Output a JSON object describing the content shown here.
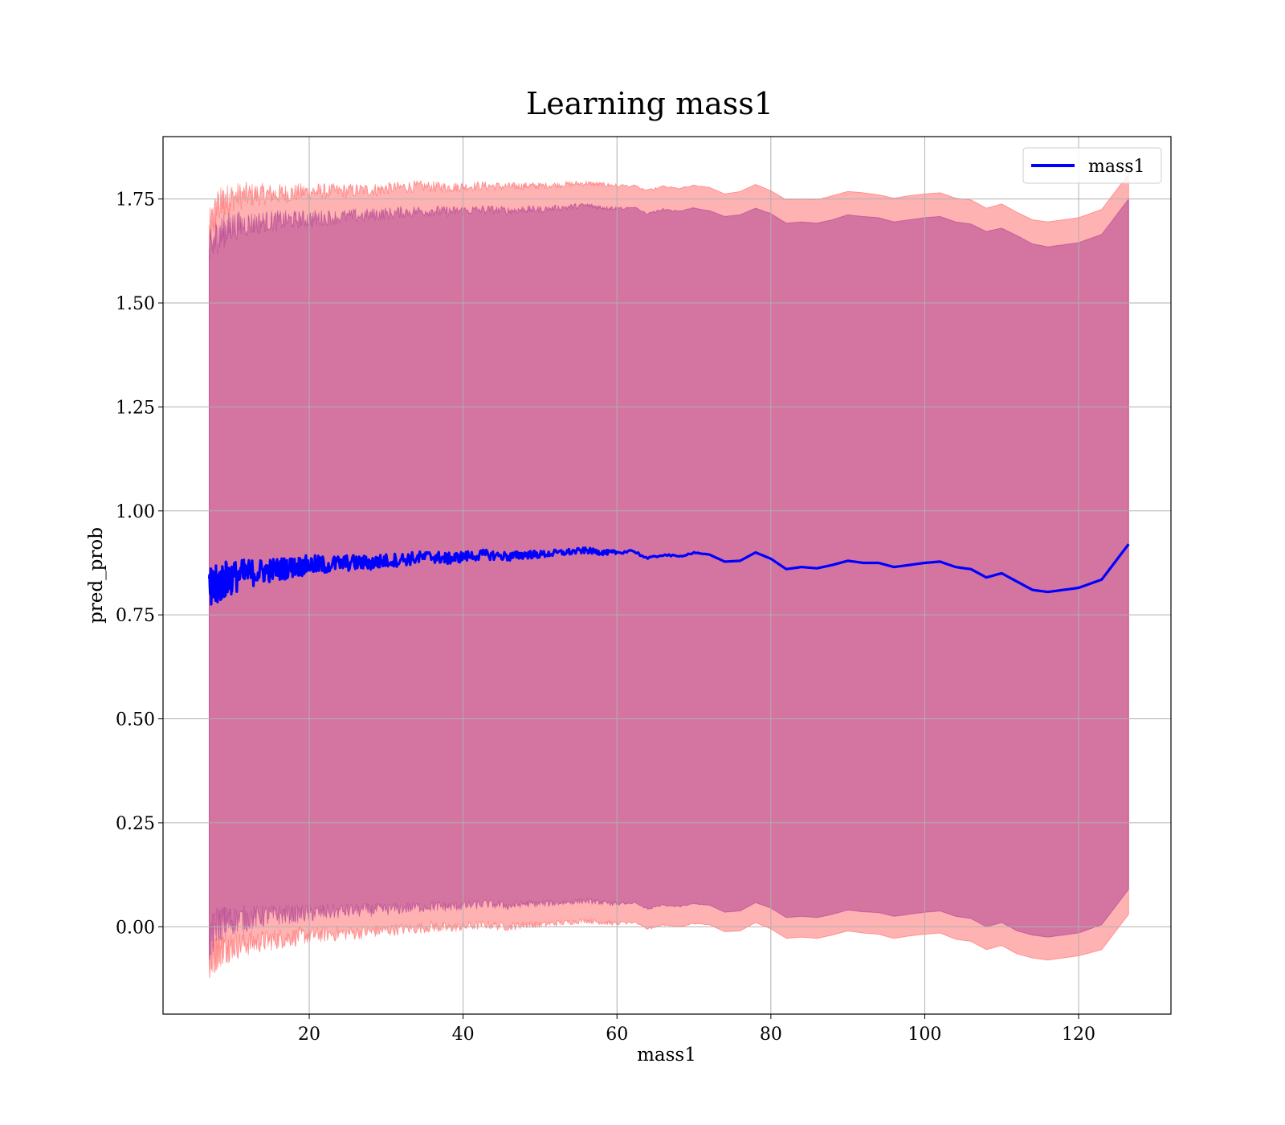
{
  "chart_data": {
    "type": "line",
    "title": "Learning mass1",
    "xlabel": "mass1",
    "ylabel": "pred_prob",
    "xlim": [
      1.0,
      132.0
    ],
    "ylim": [
      -0.21,
      1.9
    ],
    "x_ticks": [
      20,
      40,
      60,
      80,
      100,
      120
    ],
    "x_tick_labels": [
      "20",
      "40",
      "60",
      "80",
      "100",
      "120"
    ],
    "y_ticks": [
      0.0,
      0.25,
      0.5,
      0.75,
      1.0,
      1.25,
      1.5,
      1.75
    ],
    "y_tick_labels": [
      "0.00",
      "0.25",
      "0.50",
      "0.75",
      "1.00",
      "1.25",
      "1.50",
      "1.75"
    ],
    "grid": true,
    "legend": {
      "position": "top-right",
      "entries": [
        "mass1"
      ]
    },
    "colors": {
      "line": "#0000ff",
      "band_outer": "#ff0000",
      "band_inner": "#800080",
      "grid": "#b0b0b0"
    },
    "series": [
      {
        "name": "mass1",
        "x": [
          7.0,
          8.0,
          9.0,
          10.0,
          12.0,
          14.0,
          16.0,
          18.0,
          20.0,
          22.0,
          25.0,
          28.0,
          30.0,
          33.0,
          36.0,
          38.0,
          40.0,
          43.0,
          46.0,
          48.0,
          50.0,
          53.0,
          56.0,
          58.0,
          60.0,
          62.0,
          64.0,
          66.0,
          68.0,
          70.0,
          72.0,
          74.0,
          76.0,
          78.0,
          80.0,
          82.0,
          84.0,
          86.0,
          88.0,
          90.0,
          92.0,
          94.0,
          96.0,
          98.0,
          100.0,
          102.0,
          104.0,
          106.0,
          108.0,
          110.0,
          112.0,
          114.0,
          116.0,
          118.0,
          120.0,
          123.0,
          126.5
        ],
        "y": [
          0.8,
          0.82,
          0.835,
          0.84,
          0.85,
          0.855,
          0.86,
          0.865,
          0.87,
          0.87,
          0.875,
          0.875,
          0.88,
          0.885,
          0.89,
          0.885,
          0.89,
          0.895,
          0.89,
          0.895,
          0.895,
          0.9,
          0.905,
          0.9,
          0.9,
          0.905,
          0.885,
          0.895,
          0.89,
          0.9,
          0.895,
          0.878,
          0.88,
          0.9,
          0.885,
          0.86,
          0.865,
          0.862,
          0.87,
          0.88,
          0.875,
          0.875,
          0.865,
          0.87,
          0.875,
          0.878,
          0.865,
          0.86,
          0.84,
          0.85,
          0.83,
          0.81,
          0.805,
          0.81,
          0.815,
          0.835,
          0.92
        ],
        "noise_amplitude": [
          0.06,
          0.05,
          0.045,
          0.04,
          0.035,
          0.03,
          0.028,
          0.025,
          0.024,
          0.022,
          0.02,
          0.018,
          0.017,
          0.016,
          0.015,
          0.014,
          0.013,
          0.012,
          0.011,
          0.01,
          0.009,
          0.008,
          0.007,
          0.006,
          0.005,
          0.004,
          0.003,
          0.003,
          0.002,
          0.002,
          0.0,
          0.0,
          0.0,
          0.0,
          0.0,
          0.0,
          0.0,
          0.0,
          0.0,
          0.0,
          0.0,
          0.0,
          0.0,
          0.0,
          0.0,
          0.0,
          0.0,
          0.0,
          0.0,
          0.0,
          0.0,
          0.0,
          0.0,
          0.0,
          0.0,
          0.0,
          0.0
        ]
      }
    ],
    "bands": [
      {
        "color": "#ff0000",
        "alpha": 0.3,
        "upper": [
          1.67,
          1.73,
          1.745,
          1.755,
          1.76,
          1.762,
          1.762,
          1.765,
          1.768,
          1.768,
          1.77,
          1.772,
          1.775,
          1.78,
          1.78,
          1.778,
          1.78,
          1.782,
          1.78,
          1.782,
          1.782,
          1.785,
          1.788,
          1.785,
          1.782,
          1.782,
          1.77,
          1.78,
          1.775,
          1.782,
          1.778,
          1.762,
          1.768,
          1.785,
          1.77,
          1.748,
          1.75,
          1.748,
          1.758,
          1.768,
          1.765,
          1.76,
          1.752,
          1.758,
          1.762,
          1.765,
          1.752,
          1.748,
          1.728,
          1.738,
          1.718,
          1.7,
          1.695,
          1.7,
          1.705,
          1.725,
          1.81
        ],
        "lower": [
          -0.09,
          -0.06,
          -0.05,
          -0.045,
          -0.04,
          -0.035,
          -0.03,
          -0.025,
          -0.02,
          -0.018,
          -0.015,
          -0.012,
          -0.008,
          -0.005,
          0.0,
          -0.003,
          0.0,
          0.005,
          0.0,
          0.005,
          0.005,
          0.01,
          0.015,
          0.01,
          0.008,
          0.01,
          -0.005,
          0.005,
          0.0,
          0.008,
          0.005,
          -0.012,
          -0.01,
          0.01,
          -0.005,
          -0.028,
          -0.025,
          -0.028,
          -0.02,
          -0.01,
          -0.015,
          -0.018,
          -0.028,
          -0.022,
          -0.018,
          -0.015,
          -0.03,
          -0.035,
          -0.055,
          -0.045,
          -0.065,
          -0.075,
          -0.08,
          -0.075,
          -0.07,
          -0.055,
          0.03
        ]
      },
      {
        "color": "#800080",
        "alpha": 0.35,
        "upper": [
          1.62,
          1.66,
          1.675,
          1.685,
          1.69,
          1.695,
          1.698,
          1.7,
          1.702,
          1.705,
          1.708,
          1.712,
          1.715,
          1.72,
          1.722,
          1.72,
          1.722,
          1.725,
          1.722,
          1.725,
          1.725,
          1.73,
          1.735,
          1.73,
          1.728,
          1.73,
          1.715,
          1.725,
          1.72,
          1.728,
          1.722,
          1.708,
          1.712,
          1.728,
          1.715,
          1.692,
          1.695,
          1.692,
          1.7,
          1.712,
          1.708,
          1.705,
          1.695,
          1.7,
          1.705,
          1.708,
          1.695,
          1.69,
          1.672,
          1.68,
          1.662,
          1.642,
          1.635,
          1.64,
          1.645,
          1.665,
          1.75
        ],
        "lower": [
          -0.04,
          0.005,
          0.01,
          0.015,
          0.02,
          0.025,
          0.028,
          0.03,
          0.032,
          0.035,
          0.038,
          0.04,
          0.042,
          0.045,
          0.05,
          0.048,
          0.05,
          0.055,
          0.05,
          0.055,
          0.055,
          0.058,
          0.062,
          0.058,
          0.055,
          0.058,
          0.042,
          0.052,
          0.048,
          0.055,
          0.052,
          0.035,
          0.038,
          0.058,
          0.045,
          0.022,
          0.025,
          0.022,
          0.03,
          0.04,
          0.036,
          0.034,
          0.025,
          0.03,
          0.035,
          0.038,
          0.025,
          0.02,
          0.0,
          0.01,
          -0.01,
          -0.02,
          -0.025,
          -0.02,
          -0.015,
          0.005,
          0.09
        ]
      }
    ]
  }
}
